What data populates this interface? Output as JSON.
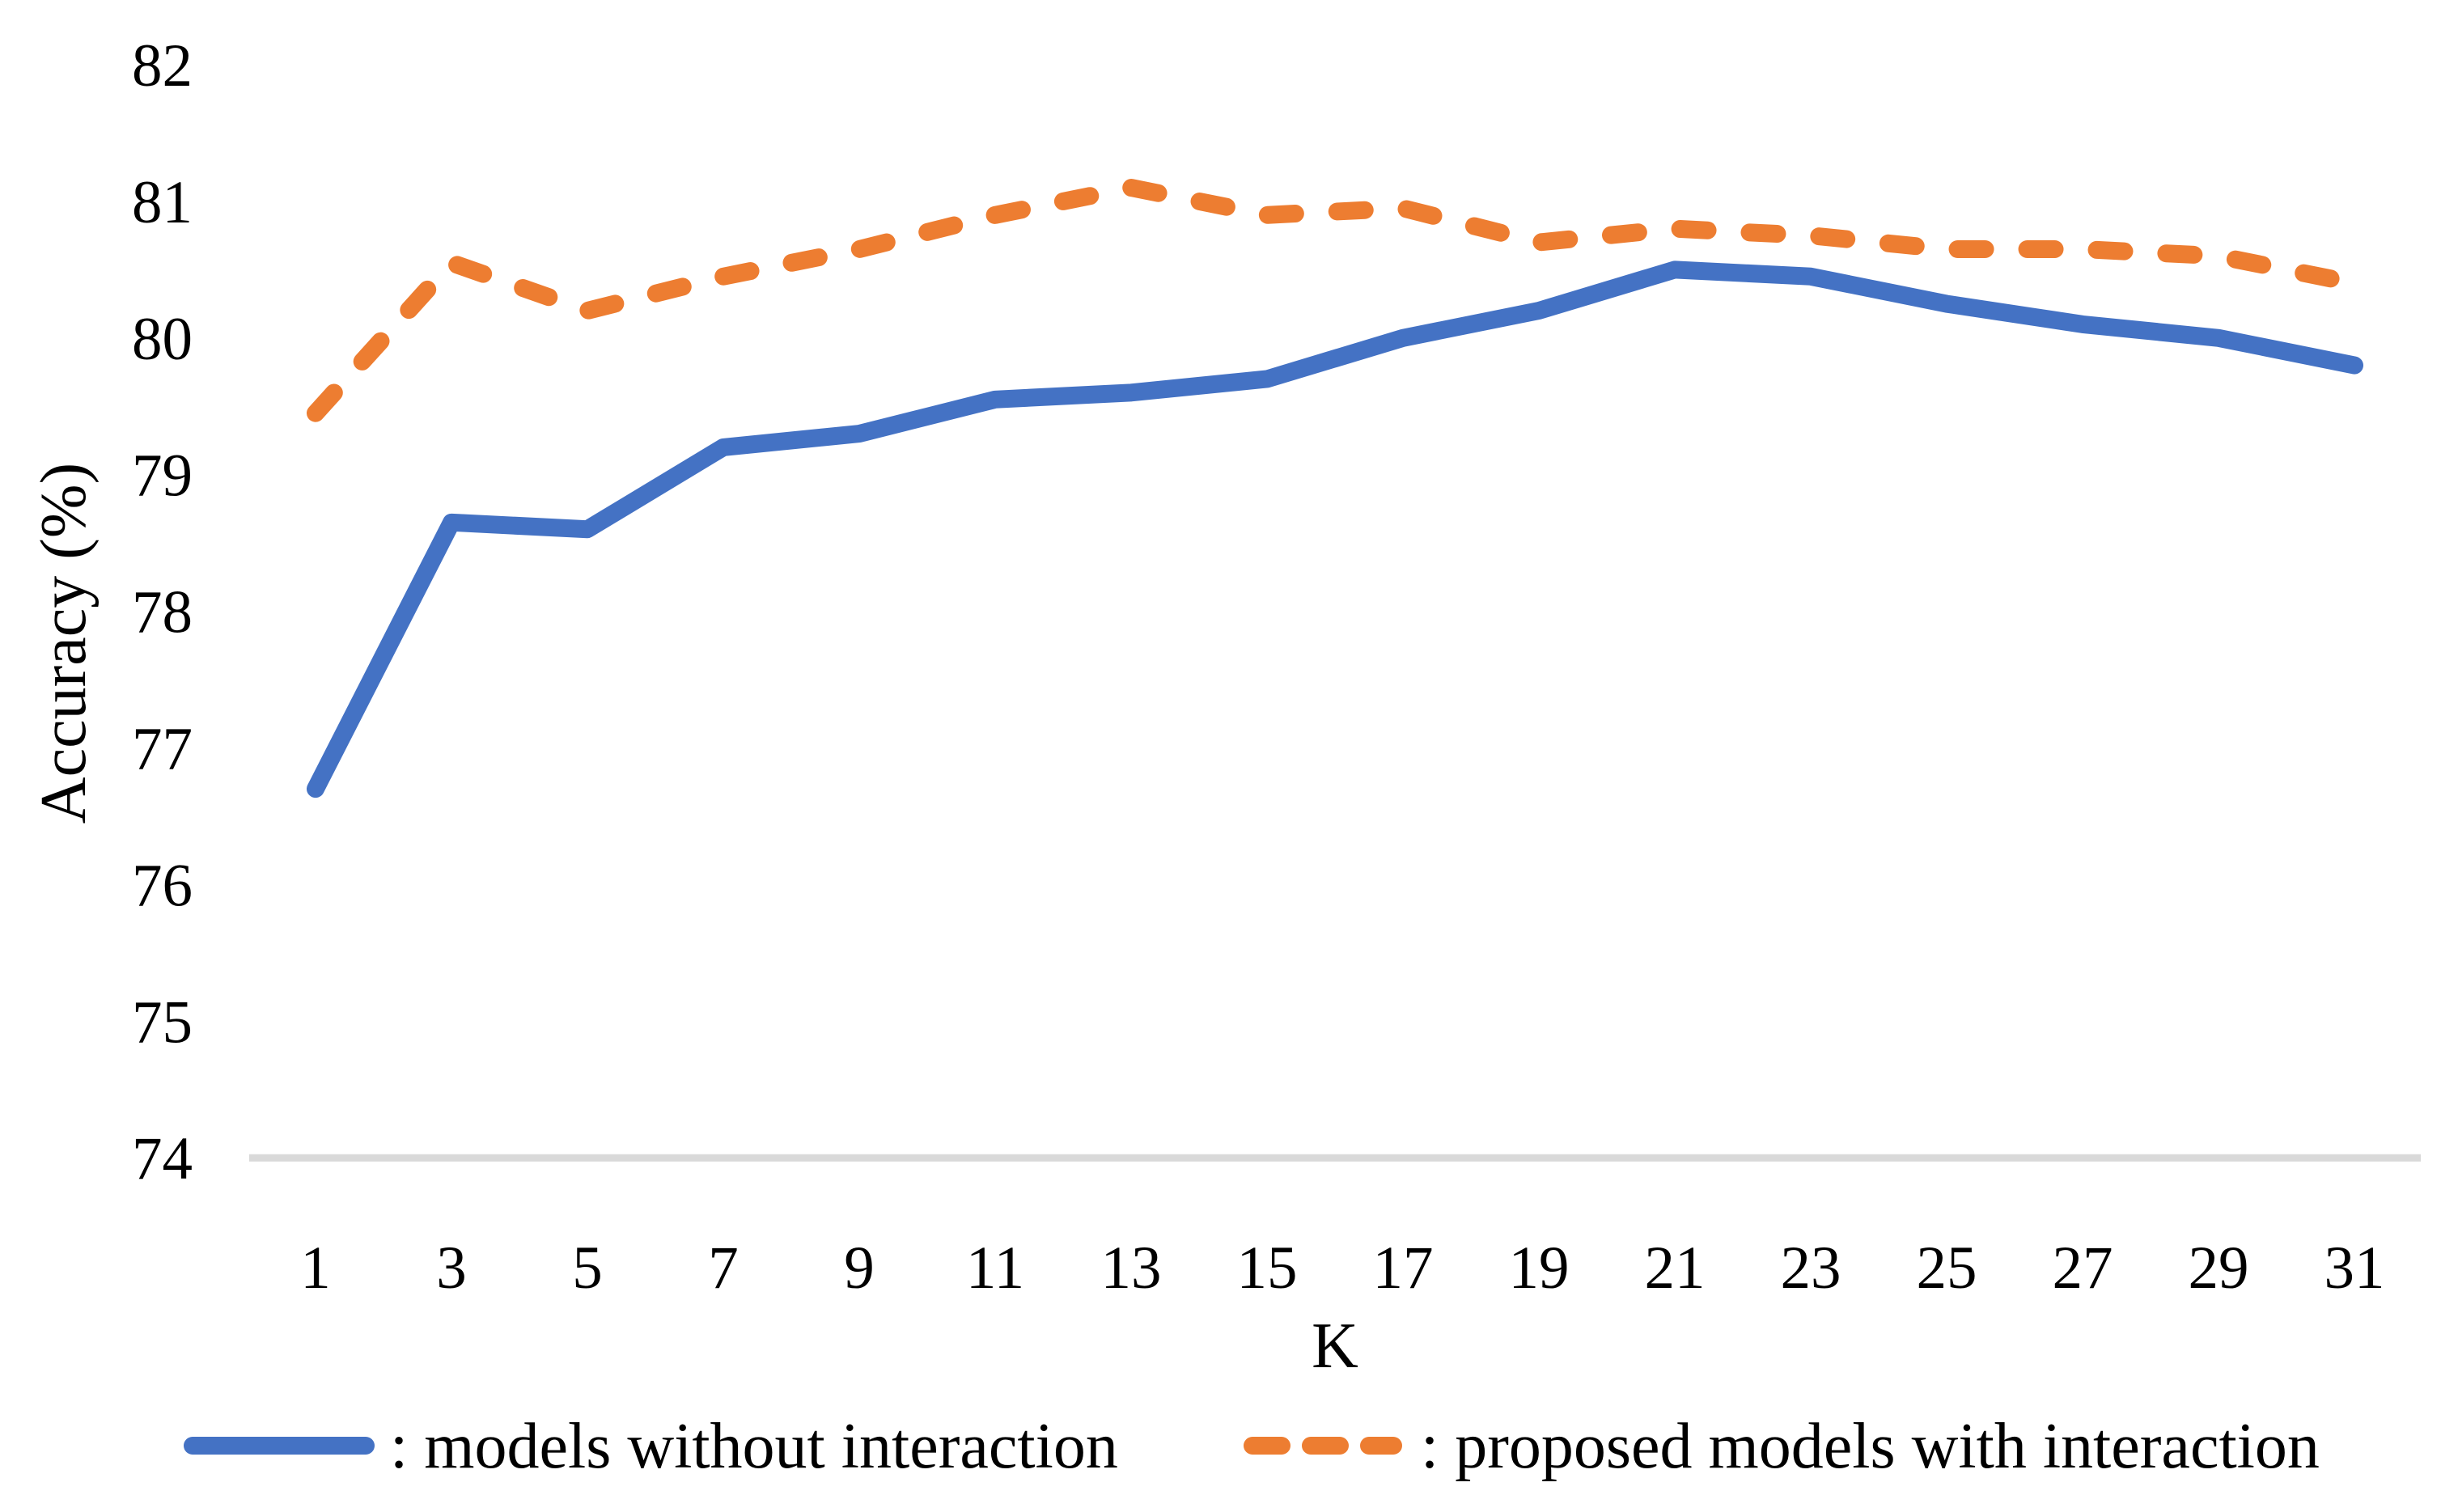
{
  "chart_data": {
    "type": "line",
    "title": "",
    "xlabel": "K",
    "ylabel": "Accuracy (%)",
    "x": [
      1,
      3,
      5,
      7,
      9,
      11,
      13,
      15,
      17,
      19,
      21,
      23,
      25,
      27,
      29,
      31
    ],
    "xticks": [
      1,
      3,
      5,
      7,
      9,
      11,
      13,
      15,
      17,
      19,
      21,
      23,
      25,
      27,
      29,
      31
    ],
    "yticks": [
      82,
      81,
      80,
      79,
      78,
      77,
      76,
      75,
      74
    ],
    "ylim": [
      74,
      82
    ],
    "xlim": [
      1,
      31
    ],
    "grid": "baseline-only",
    "baseline_value": 74,
    "legend_position": "bottom",
    "series": [
      {
        "name": ": models without interaction",
        "color": "#4472C4",
        "line_style": "solid",
        "values": [
          76.7,
          78.65,
          78.6,
          79.2,
          79.3,
          79.55,
          79.6,
          79.7,
          80.0,
          80.2,
          80.5,
          80.45,
          80.25,
          80.1,
          80.0,
          79.8
        ]
      },
      {
        "name": ": proposed models with interaction",
        "color": "#ED7D31",
        "line_style": "dashed",
        "values": [
          79.45,
          80.55,
          80.2,
          80.45,
          80.65,
          80.9,
          81.1,
          80.9,
          80.95,
          80.7,
          80.8,
          80.75,
          80.65,
          80.65,
          80.6,
          80.4
        ]
      }
    ],
    "colors": {
      "gridline": "#D9D9D9",
      "text": "#000000"
    }
  }
}
